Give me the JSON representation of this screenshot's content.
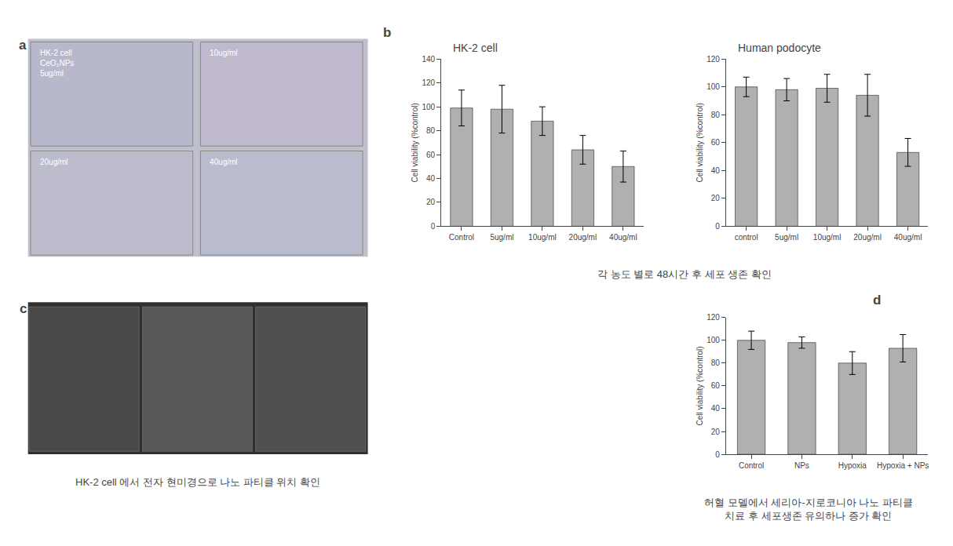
{
  "chart_data": [
    {
      "type": "bar",
      "title": "HK-2 cell",
      "categories": [
        "Control",
        "5ug/ml",
        "10ug/ml",
        "20ug/ml",
        "40ug/ml"
      ],
      "values": [
        99,
        98,
        88,
        64,
        50
      ],
      "errors": [
        15,
        20,
        12,
        12,
        13
      ],
      "ylabel": "Cell viability (%control)",
      "ylim": [
        0,
        140
      ],
      "yticks": [
        0,
        20,
        40,
        60,
        80,
        100,
        120,
        140
      ],
      "color": "#b0b0b0",
      "grid": false,
      "subtitle": "각 농도 별로 48시간 후 세포 생존 확인",
      "annotations": [
        "b"
      ]
    },
    {
      "type": "bar",
      "title": "Human podocyte",
      "categories": [
        "control",
        "5ug/ml",
        "10ug/ml",
        "20ug/ml",
        "40ug/ml"
      ],
      "values": [
        100,
        98,
        99,
        94,
        53
      ],
      "errors": [
        7,
        8,
        10,
        15,
        10
      ],
      "ylabel": "Cell viability (%control)",
      "ylim": [
        0,
        120
      ],
      "yticks": [
        0,
        20,
        40,
        60,
        80,
        100,
        120
      ],
      "color": "#b0b0b0",
      "grid": false
    },
    {
      "type": "bar",
      "categories": [
        "Control",
        "NPs",
        "Hypoxia",
        "Hypoxia + NPs"
      ],
      "values": [
        100,
        98,
        80,
        93
      ],
      "errors": [
        8,
        5,
        10,
        12
      ],
      "ylabel": "Cell viability (%control)",
      "ylim": [
        0,
        120
      ],
      "yticks": [
        0,
        20,
        40,
        60,
        80,
        100,
        120
      ],
      "color": "#b0b0b0",
      "grid": false,
      "subtitle": "허혈 모델에서 세리아-지로코니아 나노 파티클\n치료 후 세포생존 유의하나 증가 확인",
      "annotations": [
        "d"
      ]
    }
  ],
  "annotations": [
    "a",
    "HK-2 cell\nCeO₂NPs\n5ug/ml",
    "10ug/ml",
    "20ug/ml",
    "40ug/ml",
    "c",
    "HK-2 cell 에서 전자 현미경으로 나노 파티클 위치 확인"
  ]
}
